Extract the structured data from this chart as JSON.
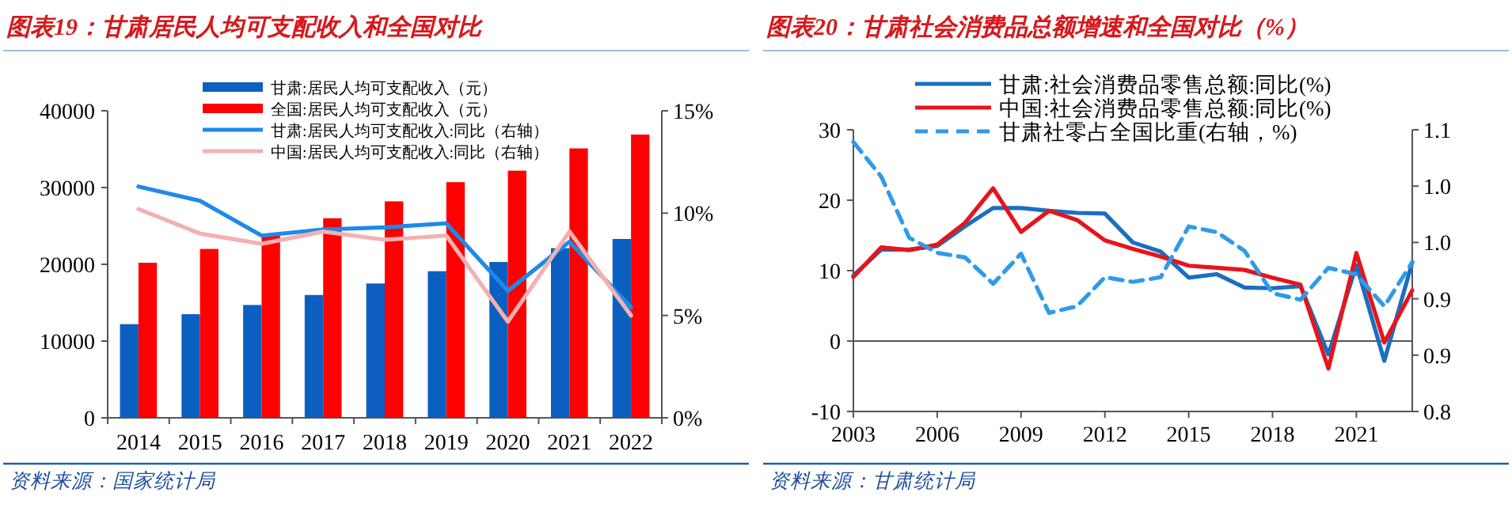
{
  "chart_data": [
    {
      "type": "bar",
      "title": "图表19：甘肃居民人均可支配收入和全国对比",
      "categories": [
        "2014",
        "2015",
        "2016",
        "2017",
        "2018",
        "2019",
        "2020",
        "2021",
        "2022"
      ],
      "series": [
        {
          "name": "甘肃:居民人均可支配收入（元）",
          "color": "#0b5fc0",
          "values": [
            12200,
            13500,
            14700,
            16000,
            17500,
            19100,
            20300,
            22100,
            23300
          ]
        },
        {
          "name": "全国:居民人均可支配收入（元）",
          "color": "#ff0000",
          "values": [
            20200,
            22000,
            23800,
            26000,
            28200,
            30700,
            32200,
            35100,
            36900
          ]
        },
        {
          "name": "甘肃:居民人均可支配收入:同比（右轴）",
          "color": "#1e8ae8",
          "type": "line",
          "axis": "y2",
          "values": [
            11.3,
            10.6,
            8.9,
            9.2,
            9.3,
            9.5,
            6.2,
            8.6,
            5.4
          ]
        },
        {
          "name": "中国:居民人均可支配收入:同比（右轴）",
          "color": "#f4b0b0",
          "type": "line",
          "axis": "y2",
          "values": [
            10.2,
            9.0,
            8.5,
            9.1,
            8.7,
            8.9,
            4.7,
            9.1,
            5.0
          ]
        }
      ],
      "ylim": [
        0,
        40000
      ],
      "yticks": [
        0,
        10000,
        20000,
        30000,
        40000
      ],
      "y2lim": [
        0,
        15
      ],
      "y2ticks": [
        {
          "value": 0,
          "label": "0%"
        },
        {
          "value": 5,
          "label": "5%"
        },
        {
          "value": 10,
          "label": "10%"
        },
        {
          "value": 15,
          "label": "15%"
        }
      ],
      "legend": "top",
      "annotations": [
        "资料来源：国家统计局"
      ]
    },
    {
      "type": "line",
      "title": "图表20：甘肃社会消费品总额增速和全国对比（%）",
      "x": [
        2003,
        2004,
        2005,
        2006,
        2007,
        2008,
        2009,
        2010,
        2011,
        2012,
        2013,
        2014,
        2015,
        2016,
        2017,
        2018,
        2019,
        2020,
        2021,
        2022,
        2023
      ],
      "series": [
        {
          "name": "甘肃:社会消费品零售总额:同比(%)",
          "color": "#1a6fc0",
          "values": [
            9.3,
            13.0,
            13.0,
            13.5,
            16.3,
            18.9,
            18.9,
            18.5,
            18.2,
            18.1,
            14.0,
            12.7,
            9.0,
            9.5,
            7.6,
            7.5,
            7.8,
            -1.9,
            10.8,
            -2.8,
            11.2
          ]
        },
        {
          "name": "中国:社会消费品零售总额:同比(%)",
          "color": "#e8141b",
          "values": [
            9.1,
            13.3,
            12.9,
            13.7,
            16.8,
            21.7,
            15.5,
            18.5,
            17.2,
            14.3,
            13.1,
            12.0,
            10.7,
            10.4,
            10.1,
            9.0,
            8.0,
            -3.9,
            12.5,
            -0.2,
            7.2
          ]
        },
        {
          "name": "甘肃社零占全国比重(右轴，%)",
          "color": "#2f9be8",
          "axis": "y2",
          "line_style": "dashed",
          "values": [
            1.087,
            1.05,
            0.985,
            0.969,
            0.964,
            0.936,
            0.968,
            0.905,
            0.912,
            0.943,
            0.938,
            0.943,
            0.997,
            0.991,
            0.971,
            0.926,
            0.919,
            0.953,
            0.946,
            0.912,
            0.959
          ]
        }
      ],
      "xlim": [
        2003,
        2023
      ],
      "xticks": [
        2003,
        2006,
        2009,
        2012,
        2015,
        2018,
        2021
      ],
      "ylim": [
        -10,
        30
      ],
      "yticks": [
        -10,
        0,
        10,
        20,
        30
      ],
      "y2lim": [
        0.8,
        1.1
      ],
      "y2ticks": [
        {
          "value": 0.8,
          "label": "0.8"
        },
        {
          "value": 0.86,
          "label": "0.9"
        },
        {
          "value": 0.92,
          "label": "0.9"
        },
        {
          "value": 0.98,
          "label": "1.0"
        },
        {
          "value": 1.04,
          "label": "1.0"
        },
        {
          "value": 1.1,
          "label": "1.1"
        }
      ],
      "ref_lines": [
        {
          "axis": "y",
          "value": 0
        }
      ],
      "legend": "top",
      "annotations": [
        "资料来源：甘肃统计局"
      ]
    }
  ]
}
